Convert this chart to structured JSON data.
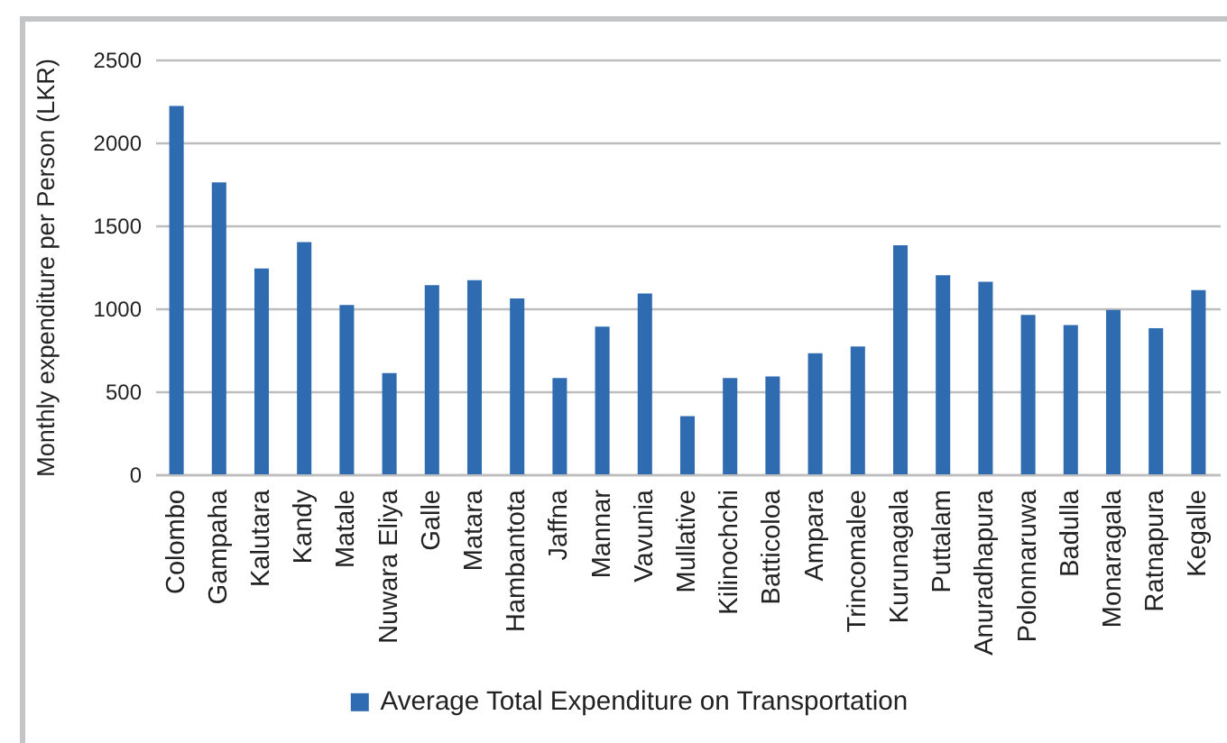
{
  "chart_data": {
    "type": "bar",
    "ylabel": "Monthly expenditure per Person (LKR)",
    "categories": [
      "Colombo",
      "Gampaha",
      "Kalutara",
      "Kandy",
      "Matale",
      "Nuwara Eliya",
      "Galle",
      "Matara",
      "Hambantota",
      "Jaffna",
      "Mannar",
      "Vavunia",
      "Mullative",
      "Kilinochchi",
      "Batticoloa",
      "Ampara",
      "Trincomalee",
      "Kurunagala",
      "Puttalam",
      "Anuradhapura",
      "Polonnaruwa",
      "Badulla",
      "Monaragala",
      "Ratnapura",
      "Kegalle"
    ],
    "series": [
      {
        "name": "Average Total Expenditure on Transportation",
        "color": "#2e6bb0",
        "values": [
          2220,
          1760,
          1240,
          1400,
          1020,
          610,
          1140,
          1170,
          1060,
          580,
          890,
          1090,
          350,
          580,
          590,
          730,
          770,
          1380,
          1200,
          1160,
          960,
          900,
          990,
          880,
          1110
        ]
      }
    ],
    "ylim": [
      0,
      2500
    ],
    "yticks": [
      0,
      500,
      1000,
      1500,
      2000,
      2500
    ],
    "grid": true,
    "legend": "bottom"
  }
}
